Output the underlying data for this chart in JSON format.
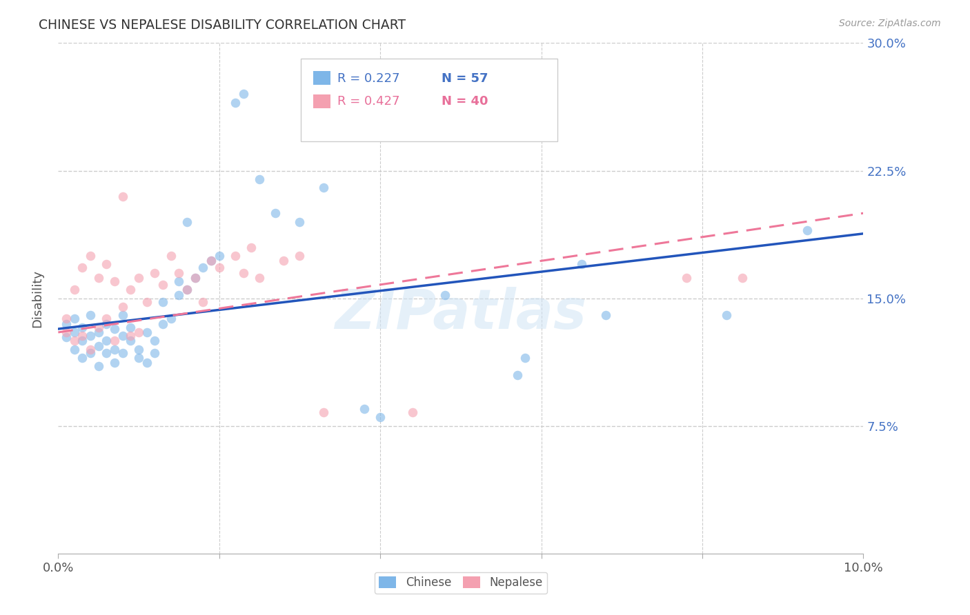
{
  "title": "CHINESE VS NEPALESE DISABILITY CORRELATION CHART",
  "source": "Source: ZipAtlas.com",
  "ylabel": "Disability",
  "xlim": [
    0.0,
    0.1
  ],
  "ylim": [
    0.0,
    0.3
  ],
  "ytick_vals": [
    0.0,
    0.075,
    0.15,
    0.225,
    0.3
  ],
  "ytick_labels": [
    "",
    "7.5%",
    "15.0%",
    "22.5%",
    "30.0%"
  ],
  "xtick_vals": [
    0.0,
    0.02,
    0.04,
    0.06,
    0.08,
    0.1
  ],
  "xtick_labels": [
    "0.0%",
    "",
    "",
    "",
    "",
    "10.0%"
  ],
  "grid_color": "#cccccc",
  "background_color": "#ffffff",
  "chinese_color": "#7EB6E8",
  "nepalese_color": "#F4A0B0",
  "chinese_line_color": "#2255BB",
  "nepalese_line_color": "#EE7799",
  "watermark": "ZIPatlas",
  "chinese_scatter": {
    "x": [
      0.001,
      0.001,
      0.002,
      0.002,
      0.002,
      0.003,
      0.003,
      0.003,
      0.004,
      0.004,
      0.004,
      0.005,
      0.005,
      0.005,
      0.006,
      0.006,
      0.006,
      0.007,
      0.007,
      0.007,
      0.008,
      0.008,
      0.008,
      0.009,
      0.009,
      0.01,
      0.01,
      0.011,
      0.011,
      0.012,
      0.012,
      0.013,
      0.013,
      0.014,
      0.015,
      0.015,
      0.016,
      0.016,
      0.017,
      0.018,
      0.019,
      0.02,
      0.022,
      0.023,
      0.025,
      0.027,
      0.03,
      0.033,
      0.038,
      0.04,
      0.048,
      0.057,
      0.058,
      0.065,
      0.068,
      0.083,
      0.093
    ],
    "y": [
      0.135,
      0.127,
      0.13,
      0.12,
      0.138,
      0.125,
      0.133,
      0.115,
      0.128,
      0.118,
      0.14,
      0.122,
      0.13,
      0.11,
      0.125,
      0.118,
      0.135,
      0.12,
      0.132,
      0.112,
      0.128,
      0.118,
      0.14,
      0.125,
      0.133,
      0.12,
      0.115,
      0.13,
      0.112,
      0.125,
      0.118,
      0.135,
      0.148,
      0.138,
      0.152,
      0.16,
      0.155,
      0.195,
      0.162,
      0.168,
      0.172,
      0.175,
      0.265,
      0.27,
      0.22,
      0.2,
      0.195,
      0.215,
      0.085,
      0.08,
      0.152,
      0.105,
      0.115,
      0.17,
      0.14,
      0.14,
      0.19
    ]
  },
  "nepalese_scatter": {
    "x": [
      0.001,
      0.001,
      0.002,
      0.002,
      0.003,
      0.003,
      0.004,
      0.004,
      0.005,
      0.005,
      0.006,
      0.006,
      0.007,
      0.007,
      0.008,
      0.008,
      0.009,
      0.009,
      0.01,
      0.01,
      0.011,
      0.012,
      0.013,
      0.014,
      0.015,
      0.016,
      0.017,
      0.018,
      0.019,
      0.02,
      0.022,
      0.023,
      0.024,
      0.025,
      0.028,
      0.03,
      0.033,
      0.044,
      0.078,
      0.085
    ],
    "y": [
      0.13,
      0.138,
      0.125,
      0.155,
      0.128,
      0.168,
      0.12,
      0.175,
      0.133,
      0.162,
      0.138,
      0.17,
      0.125,
      0.16,
      0.21,
      0.145,
      0.128,
      0.155,
      0.13,
      0.162,
      0.148,
      0.165,
      0.158,
      0.175,
      0.165,
      0.155,
      0.162,
      0.148,
      0.172,
      0.168,
      0.175,
      0.165,
      0.18,
      0.162,
      0.172,
      0.175,
      0.083,
      0.083,
      0.162,
      0.162
    ]
  },
  "blue_line_y0": 0.132,
  "blue_line_y1": 0.188,
  "pink_line_y0": 0.13,
  "pink_line_y1": 0.2
}
